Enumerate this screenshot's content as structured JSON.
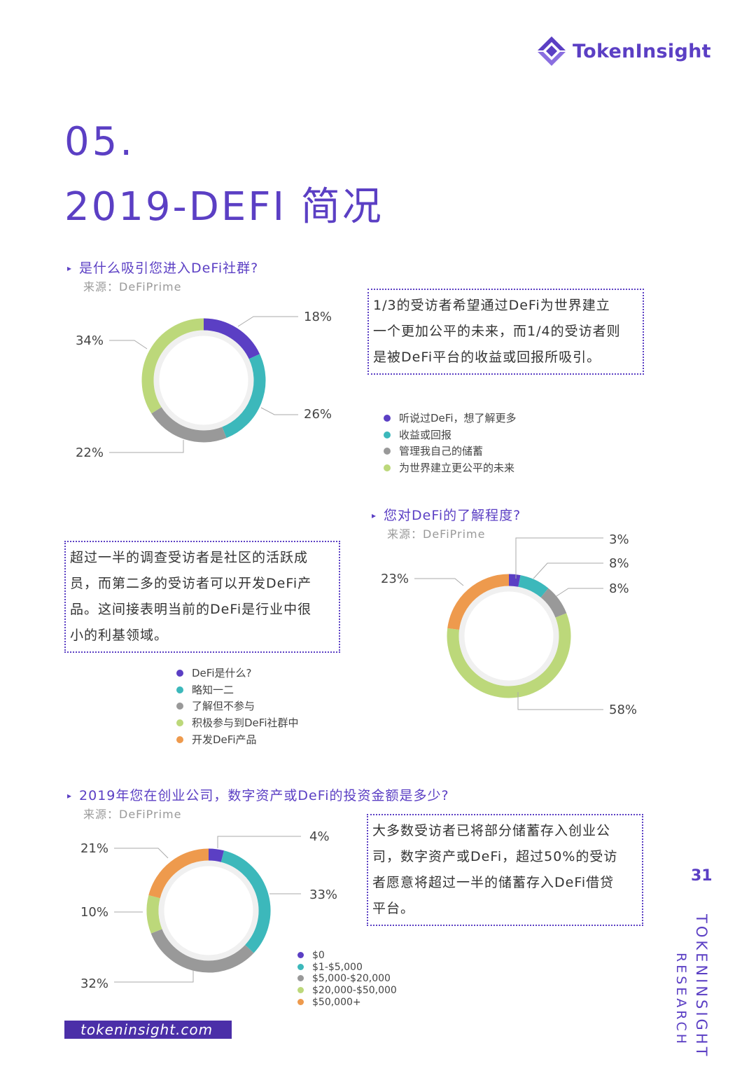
{
  "brand": {
    "name": "TokenInsight",
    "website": "tokeninsight.com",
    "page_number": "31",
    "vertical_1": "TOKENINSIGHT",
    "vertical_2": "RESEARCH"
  },
  "chapter": {
    "number": "05.",
    "title": "2019-DEFI 简况"
  },
  "colors": {
    "purple": "#5b3fc4",
    "teal": "#3cb8bb",
    "gray": "#999999",
    "green": "#bcd87a",
    "orange": "#ee9a4d"
  },
  "sections": [
    {
      "question": "是什么吸引您进入DeFi社群?",
      "source": "来源：DeFiPrime",
      "note_lines": [
        "1/3的受访者希望通过DeFi为世界建立",
        "一个更加公平的未来，而1/4的受访者则",
        "是被DeFi平台的收益或回报所吸引。"
      ],
      "legend": [
        "听说过DeFi，想了解更多",
        "收益或回报",
        "管理我自己的储蓄",
        "为世界建立更公平的未来"
      ]
    },
    {
      "question": "您对DeFi的了解程度?",
      "source": "来源：DeFiPrime",
      "note_lines": [
        "超过一半的调查受访者是社区的活跃成",
        "员，而第二多的受访者可以开发DeFi产",
        "品。这间接表明当前的DeFi是行业中很",
        "小的利基领域。"
      ],
      "legend": [
        "DeFi是什么?",
        "略知一二",
        "了解但不参与",
        "积极参与到DeFi社群中",
        "开发DeFi产品"
      ]
    },
    {
      "question": "2019年您在创业公司，数字资产或DeFi的投资金额是多少?",
      "source": "来源：DeFiPrime",
      "note_lines": [
        "大多数受访者已将部分储蓄存入创业公",
        "司，数字资产或DeFi，超过50%的受访",
        "者愿意将超过一半的储蓄存入DeFi借贷",
        "平台。"
      ],
      "legend": [
        "$0",
        "$1-$5,000",
        "$5,000-$20,000",
        "$20,000-$50,000",
        "$50,000+"
      ]
    }
  ],
  "chart_data": [
    {
      "type": "pie",
      "variant": "donut",
      "title": "是什么吸引您进入DeFi社群?",
      "categories": [
        "听说过DeFi，想了解更多",
        "收益或回报",
        "管理我自己的储蓄",
        "为世界建立更公平的未来"
      ],
      "values": [
        18,
        26,
        22,
        34
      ],
      "labels": [
        "18%",
        "26%",
        "22%",
        "34%"
      ],
      "colors": [
        "#5b3fc4",
        "#3cb8bb",
        "#999999",
        "#bcd87a"
      ]
    },
    {
      "type": "pie",
      "variant": "donut",
      "title": "您对DeFi的了解程度?",
      "categories": [
        "DeFi是什么?",
        "略知一二",
        "了解但不参与",
        "积极参与到DeFi社群中",
        "开发DeFi产品"
      ],
      "values": [
        3,
        8,
        8,
        58,
        23
      ],
      "labels": [
        "3%",
        "8%",
        "8%",
        "58%",
        "23%"
      ],
      "colors": [
        "#5b3fc4",
        "#3cb8bb",
        "#999999",
        "#bcd87a",
        "#ee9a4d"
      ]
    },
    {
      "type": "pie",
      "variant": "donut",
      "title": "2019年您在创业公司，数字资产或DeFi的投资金额是多少?",
      "categories": [
        "$0",
        "$1-$5,000",
        "$5,000-$20,000",
        "$20,000-$50,000",
        "$50,000+"
      ],
      "values": [
        4,
        33,
        32,
        10,
        21
      ],
      "labels": [
        "4%",
        "33%",
        "32%",
        "10%",
        "21%"
      ],
      "colors": [
        "#5b3fc4",
        "#3cb8bb",
        "#999999",
        "#bcd87a",
        "#ee9a4d"
      ]
    }
  ]
}
